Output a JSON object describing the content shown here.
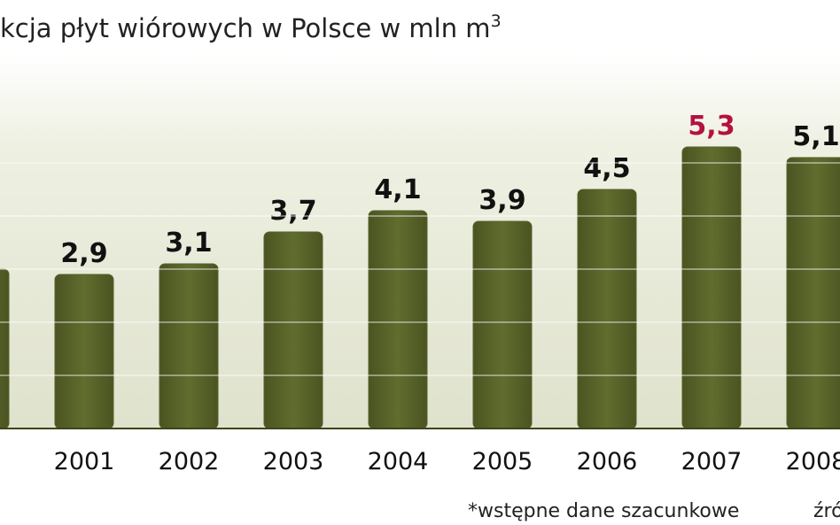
{
  "chart_data": {
    "type": "bar",
    "title": "kcja płyt wiórowych w Polsce w mln m",
    "title_superscript": "3",
    "categories": [
      null,
      "2001",
      "2002",
      "2003",
      "2004",
      "2005",
      "2006",
      "2007",
      "2008"
    ],
    "values": [
      3.0,
      2.9,
      3.1,
      3.7,
      4.1,
      3.9,
      4.5,
      5.3,
      5.1
    ],
    "value_labels": [
      null,
      "2,9",
      "3,1",
      "3,7",
      "4,1",
      "3,9",
      "4,5",
      "5,3",
      "5,1"
    ],
    "highlight_color": "#b5103f",
    "highlight_index": 7,
    "color": "#56612a",
    "ylim": [
      0,
      8
    ],
    "yticks": [
      0,
      1,
      2,
      3,
      4,
      5
    ],
    "grid": true,
    "footnote": "*wstępne dane szacunkowe",
    "source": "źró"
  }
}
